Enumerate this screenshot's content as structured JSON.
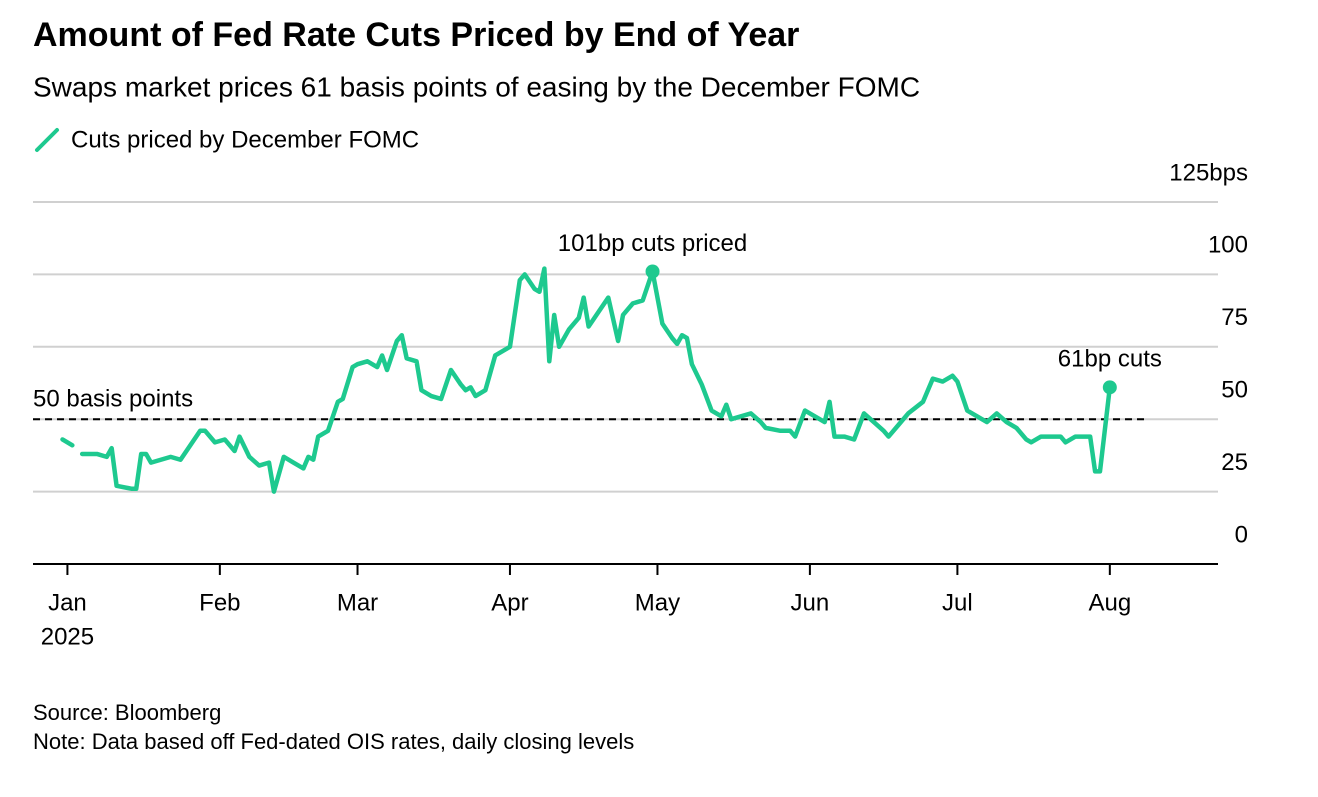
{
  "chart_data": {
    "type": "line",
    "title": "Amount of Fed Rate Cuts Priced by End of Year",
    "subtitle": "Swaps market prices 61 basis points of easing by the December FOMC",
    "source": "Source: Bloomberg",
    "note": "Note: Data based off Fed-dated OIS rates, daily closing levels",
    "x": [
      -1,
      1,
      2,
      3,
      6,
      8,
      9,
      10,
      13,
      14,
      15,
      16,
      17,
      19,
      21,
      23,
      25,
      27,
      28,
      30,
      32,
      34,
      35,
      37,
      39,
      41,
      42,
      43,
      44,
      46,
      48,
      49,
      50,
      51,
      53,
      55,
      56,
      58,
      59,
      61,
      63,
      64,
      65,
      67,
      68,
      69,
      71,
      72,
      74,
      76,
      78,
      80,
      81,
      82,
      83,
      85,
      87,
      89,
      90,
      92,
      93,
      95,
      96,
      97,
      98,
      99,
      100,
      102,
      104,
      105,
      106,
      108,
      110,
      112,
      113,
      115,
      117,
      119,
      121,
      123,
      124,
      125,
      126,
      127,
      129,
      131,
      133,
      134,
      135,
      137,
      139,
      141,
      142,
      145,
      147,
      148,
      150,
      152,
      154,
      155,
      156,
      158,
      160,
      162,
      164,
      166,
      167,
      169,
      171,
      174,
      176,
      178,
      180,
      181,
      183,
      185,
      187,
      189,
      191,
      193,
      195,
      196,
      198,
      200,
      202,
      203,
      205,
      207,
      208,
      209,
      210,
      212
    ],
    "series": [
      {
        "name": "Cuts priced by December FOMC",
        "color": "#1ec98f",
        "values": [
          43,
          41,
          null,
          38,
          38,
          37,
          40,
          27,
          26,
          26,
          38,
          38,
          35,
          36,
          37,
          36,
          41,
          46,
          46,
          42,
          43,
          39,
          44,
          37,
          34,
          35,
          25,
          31,
          37,
          35,
          33,
          37,
          36,
          44,
          46,
          56,
          57,
          68,
          69,
          70,
          68,
          72,
          67,
          77,
          79,
          71,
          70,
          60,
          58,
          57,
          67,
          62,
          60,
          61,
          58,
          60,
          72,
          74,
          75,
          98,
          100,
          95,
          94,
          102,
          70,
          86,
          75,
          81,
          85,
          92,
          82,
          87,
          92,
          77,
          86,
          90,
          91,
          101,
          83,
          78,
          76,
          79,
          78,
          69,
          62,
          53,
          51,
          55,
          50,
          51,
          52,
          49,
          47,
          46,
          46,
          44,
          53,
          51,
          49,
          56,
          44,
          44,
          43,
          52,
          49,
          46,
          44,
          48,
          52,
          56,
          64,
          63,
          65,
          63,
          53,
          51,
          49,
          52,
          49,
          47,
          43,
          42,
          44,
          44,
          44,
          42,
          44,
          44,
          44,
          32,
          32,
          61
        ]
      }
    ],
    "xlim": [
      -7,
      234
    ],
    "xticks": [
      {
        "value": 0,
        "label": "Jan"
      },
      {
        "value": 31,
        "label": "Feb"
      },
      {
        "value": 59,
        "label": "Mar"
      },
      {
        "value": 90,
        "label": "Apr"
      },
      {
        "value": 120,
        "label": "May"
      },
      {
        "value": 151,
        "label": "Jun"
      },
      {
        "value": 181,
        "label": "Jul"
      },
      {
        "value": 212,
        "label": "Aug"
      }
    ],
    "xtick_sublabel": "2025",
    "ylim": [
      0,
      125
    ],
    "yticks": [
      0,
      25,
      50,
      75,
      100,
      {
        "value": 125,
        "label": "125bps"
      }
    ],
    "grid": true,
    "reference_line": {
      "value": 50,
      "label": "50 basis points"
    },
    "annotations": [
      {
        "text": "101bp cuts priced",
        "x": 119,
        "y": 101
      },
      {
        "text": "61bp cuts",
        "x": 212,
        "y": 61
      }
    ]
  }
}
